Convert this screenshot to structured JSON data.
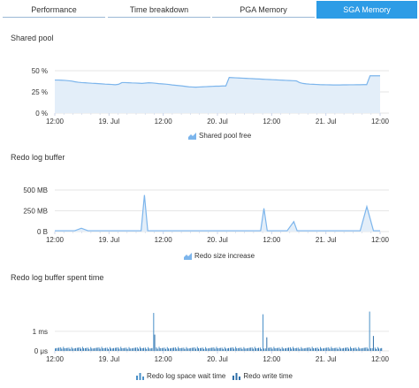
{
  "tabs": [
    {
      "label": "Performance",
      "active": false
    },
    {
      "label": "Time breakdown",
      "active": false
    },
    {
      "label": "PGA Memory",
      "active": false
    },
    {
      "label": "SGA Memory",
      "active": true
    }
  ],
  "colors": {
    "accent": "#2d9ce6",
    "line": "#7cb5ec",
    "fill": "#e3eef9",
    "bar": "#4a90c8",
    "grid": "#e6e6e6"
  },
  "sections": [
    {
      "title": "Shared pool",
      "legend": [
        {
          "label": "Shared pool free",
          "icon": "area-chart-icon"
        }
      ]
    },
    {
      "title": "Redo log buffer",
      "legend": [
        {
          "label": "Redo size increase",
          "icon": "area-chart-icon"
        }
      ]
    },
    {
      "title": "Redo log buffer spent time",
      "legend": [
        {
          "label": "Redo log space wait time",
          "icon": "bar-chart-icon"
        },
        {
          "label": "Redo write time",
          "icon": "bar-chart-icon"
        }
      ]
    }
  ],
  "chart_data": [
    {
      "type": "area",
      "title": "Shared pool",
      "x_ticks": [
        "12:00",
        "19. Jul",
        "12:00",
        "20. Jul",
        "12:00",
        "21. Jul",
        "12:00"
      ],
      "y_ticks": [
        "50 %",
        "25 %",
        "0 %"
      ],
      "ylim": [
        0,
        50
      ],
      "series": [
        {
          "name": "Shared pool free",
          "x": [
            0,
            0.5,
            1,
            1.5,
            2,
            2.5,
            3,
            3.5,
            4,
            4.5,
            5,
            5.5,
            6,
            6.5,
            7,
            7.5,
            8,
            8.5,
            9,
            9.5,
            10,
            10.5,
            11,
            11.5,
            12,
            12.5,
            13,
            13.5,
            14,
            14.5,
            15,
            15.5,
            16,
            16.5,
            17,
            17.5,
            18,
            18.5,
            19,
            19.5,
            20,
            20.5,
            21,
            21.5,
            22,
            22.5,
            23,
            23.5,
            24,
            24.5,
            25,
            25.5,
            26,
            26.5,
            27,
            27.5,
            28,
            28.5,
            29,
            29.5,
            30,
            30.5,
            31,
            31.5,
            32,
            32.5,
            33,
            33.5,
            34,
            34.5,
            35,
            35.5,
            36,
            36.5,
            37,
            37.5,
            38,
            38.5,
            39,
            39.5,
            40,
            40.5,
            41,
            41.5,
            42,
            42.5,
            43,
            43.5,
            44,
            44.5,
            45,
            45.5,
            46,
            46.5,
            47,
            47.5,
            48,
            48.5
          ],
          "values": [
            39,
            39,
            38.8,
            38.6,
            38.2,
            37.8,
            37,
            36.4,
            36,
            35.8,
            35.5,
            35.2,
            35,
            34.8,
            34.5,
            34.2,
            34,
            33.8,
            33.5,
            34,
            36,
            36,
            35.8,
            35.6,
            35.5,
            35.3,
            35,
            35.4,
            35.8,
            35.6,
            35.2,
            34.8,
            34.5,
            34.2,
            33.8,
            33.2,
            32.8,
            32.4,
            32,
            31.5,
            31,
            30.8,
            30.6,
            30.8,
            31,
            31.2,
            31.4,
            31.6,
            31.8,
            31.8,
            32,
            32,
            42,
            41.8,
            41.6,
            41.4,
            41.2,
            41,
            40.8,
            40.6,
            40.4,
            40.2,
            40,
            39.8,
            39.6,
            39.4,
            39.2,
            39,
            38.8,
            38.6,
            38.4,
            38.2,
            38,
            36,
            35,
            34.5,
            34.2,
            34,
            33.8,
            33.6,
            33.5,
            33.4,
            33.3,
            33.2,
            33.2,
            33.2,
            33.3,
            33.3,
            33.4,
            33.4,
            33.5,
            33.5,
            33.6,
            33.6,
            44,
            44,
            44,
            44
          ]
        }
      ]
    },
    {
      "type": "area",
      "title": "Redo log buffer",
      "x_ticks": [
        "12:00",
        "19. Jul",
        "12:00",
        "20. Jul",
        "12:00",
        "21. Jul",
        "12:00"
      ],
      "y_ticks": [
        "500 MB",
        "250 MB",
        "0 B"
      ],
      "ylim": [
        0,
        500
      ],
      "series": [
        {
          "name": "Redo size increase",
          "x": [
            0,
            1,
            2,
            3,
            4,
            5,
            6,
            6.5,
            7,
            8,
            9,
            10,
            11,
            12,
            13,
            13.5,
            14,
            15,
            15.5,
            16,
            17,
            18,
            18.5,
            19,
            20,
            21,
            22,
            23,
            24,
            25,
            26,
            27,
            28,
            29,
            29.5,
            30,
            31,
            31.5,
            32,
            33,
            34,
            35,
            36,
            36.5,
            37,
            38,
            39,
            40,
            41,
            42,
            43,
            43.5,
            44,
            45,
            46,
            47,
            48,
            49
          ],
          "values": [
            10,
            10,
            10,
            10,
            40,
            10,
            10,
            10,
            10,
            10,
            10,
            10,
            10,
            10,
            10,
            440,
            10,
            10,
            10,
            10,
            10,
            10,
            10,
            10,
            10,
            10,
            10,
            10,
            10,
            10,
            10,
            10,
            10,
            10,
            10,
            10,
            10,
            280,
            10,
            10,
            10,
            10,
            120,
            10,
            10,
            10,
            10,
            10,
            10,
            10,
            10,
            10,
            10,
            10,
            10,
            300,
            10,
            10
          ]
        }
      ]
    },
    {
      "type": "bar",
      "title": "Redo log buffer spent time",
      "x_ticks": [
        "12:00",
        "19. Jul",
        "12:00",
        "20. Jul",
        "12:00",
        "21. Jul",
        "12:00"
      ],
      "y_ticks": [
        "1 ms",
        "0 μs"
      ],
      "ylim": [
        0,
        1.5
      ],
      "series": [
        {
          "name": "Redo log space wait time",
          "spikes": [
            {
              "pos": 0.3,
              "value": 1.4
            },
            {
              "pos": 0.639,
              "value": 1.35
            },
            {
              "pos": 0.966,
              "value": 1.45
            }
          ],
          "base": 0.15
        },
        {
          "name": "Redo write time",
          "spikes": [
            {
              "pos": 0.305,
              "value": 0.6
            },
            {
              "pos": 0.644,
              "value": 0.5
            },
            {
              "pos": 0.972,
              "value": 0.55
            }
          ],
          "base": 0.12
        }
      ]
    }
  ]
}
